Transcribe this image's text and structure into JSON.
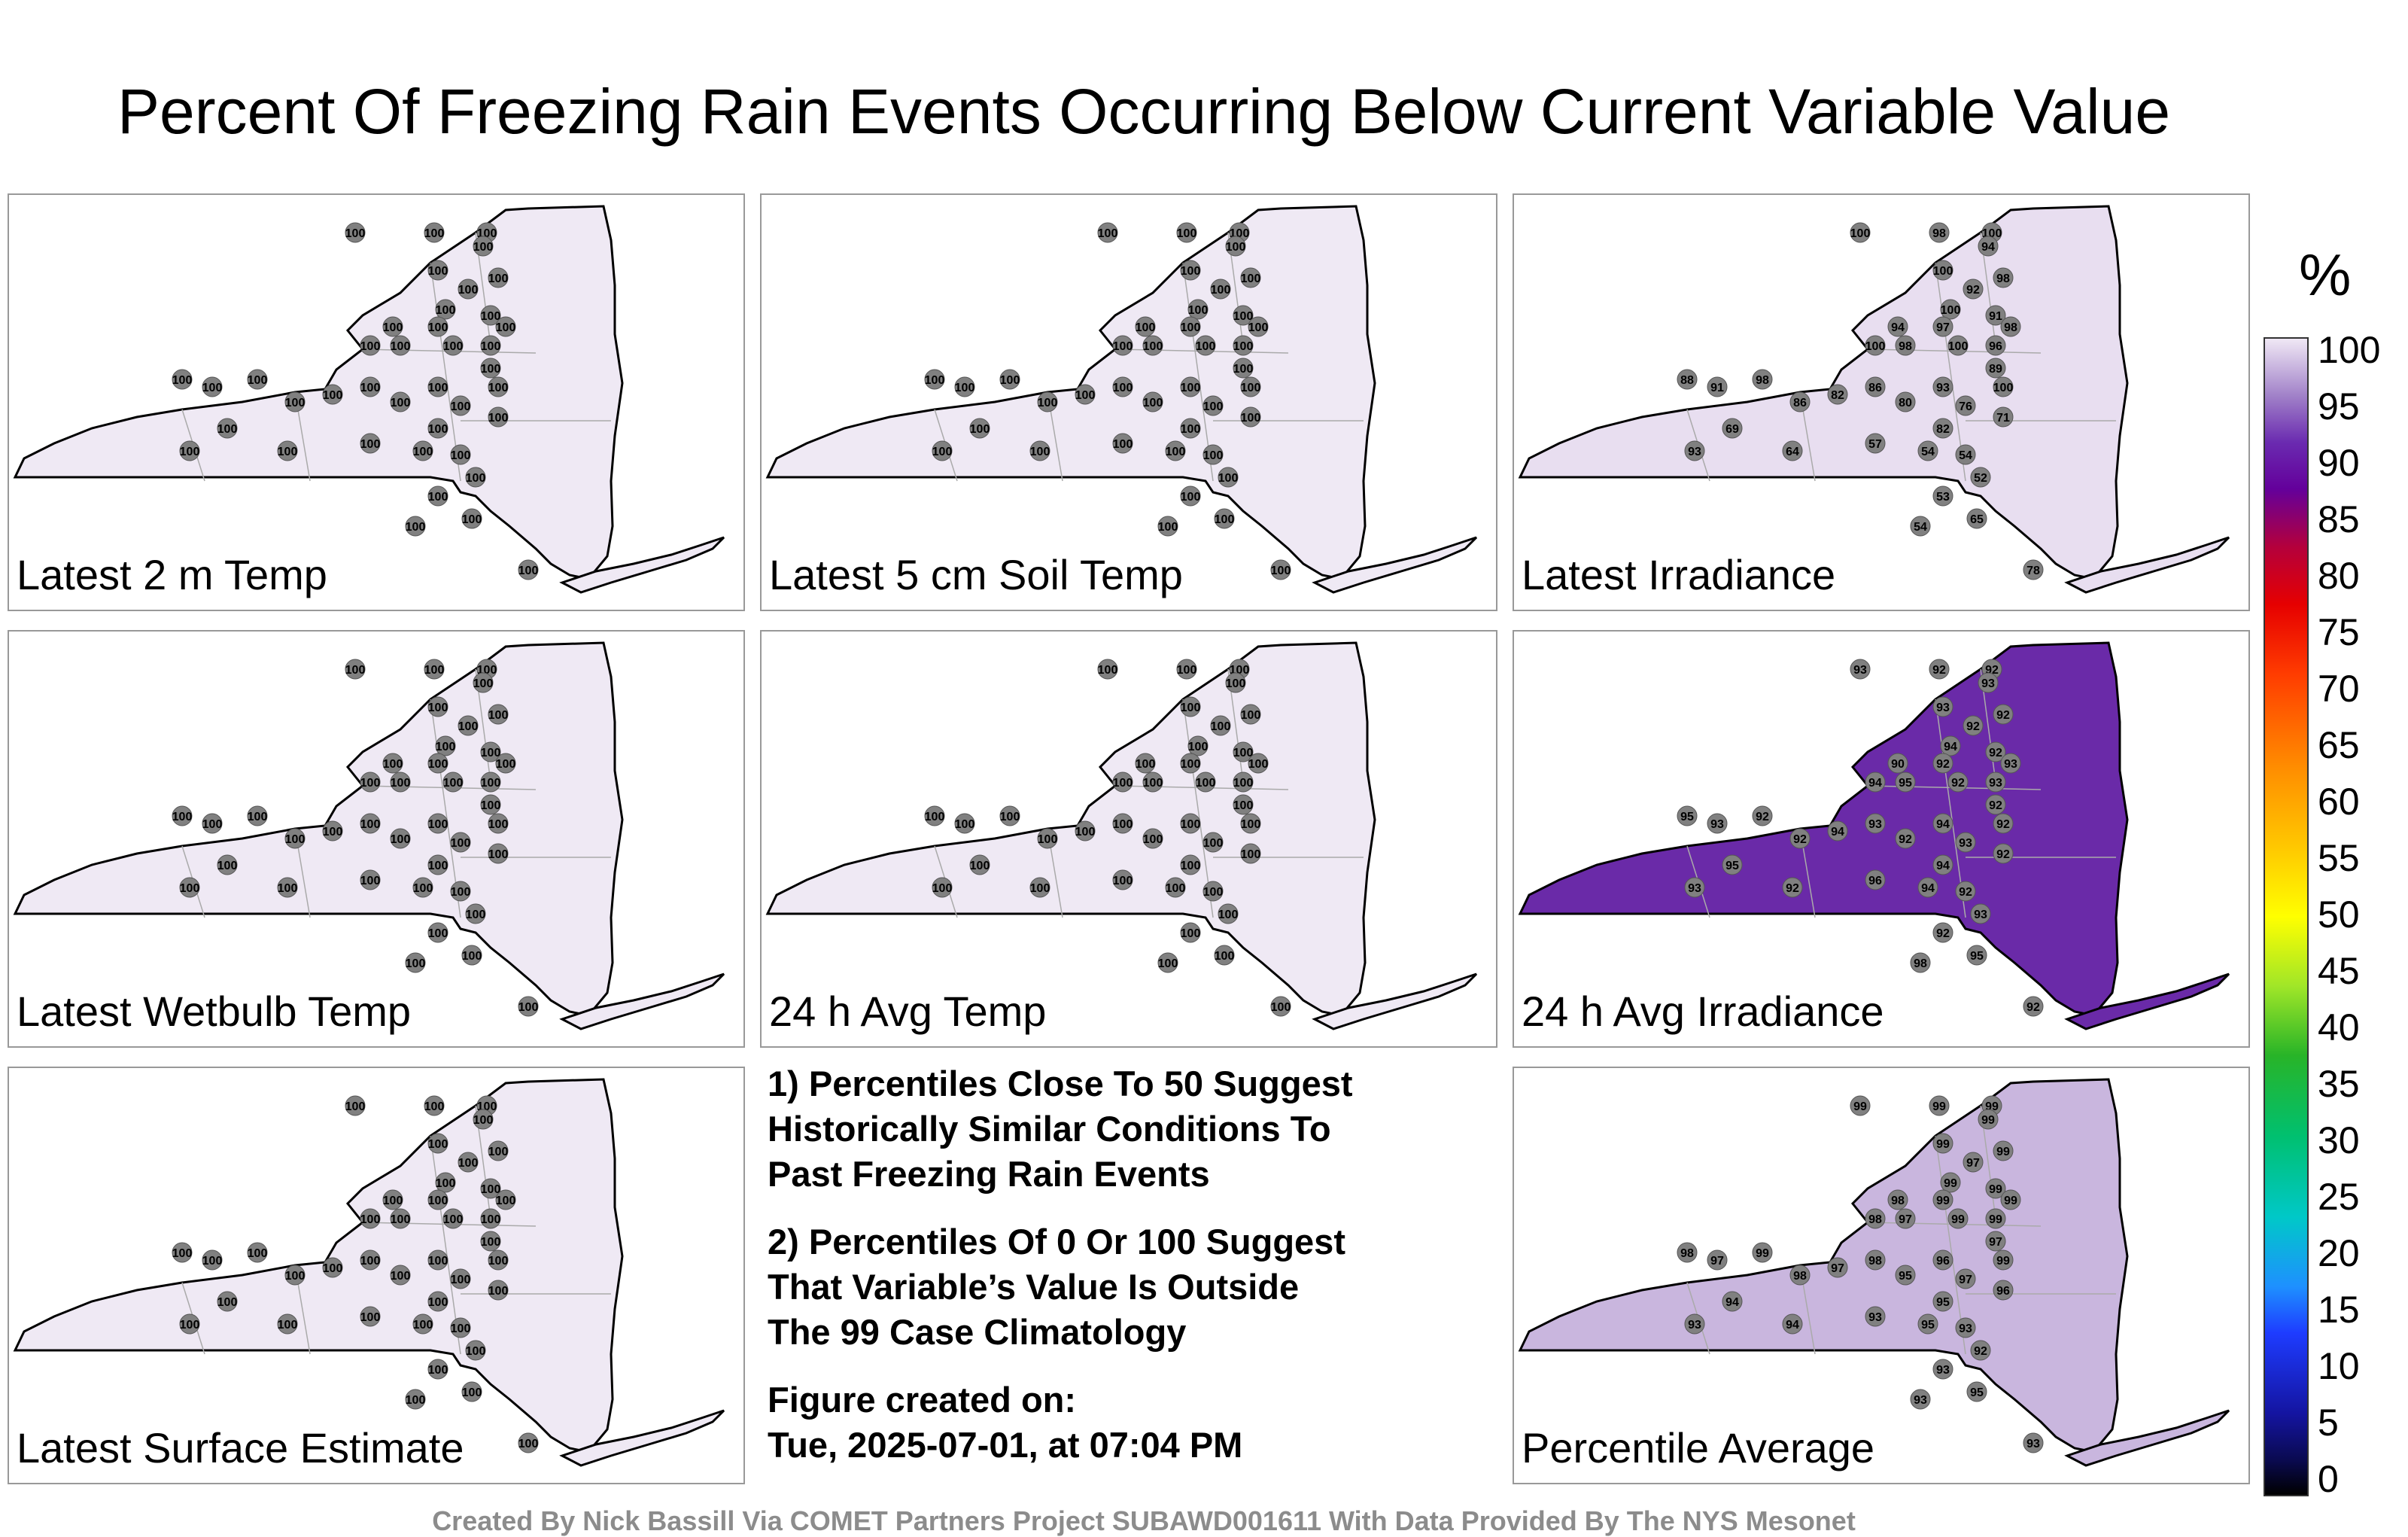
{
  "title": "Percent Of Freezing Rain Events Occurring Below Current Variable Value",
  "panels": [
    {
      "label": "Latest 2 m Temp",
      "fill": "#efe9f4",
      "values": [
        100,
        100,
        100,
        100,
        100,
        100,
        100,
        100,
        100,
        100,
        100,
        100,
        100,
        100,
        100,
        100,
        100,
        100,
        100,
        100,
        100,
        100,
        100,
        100,
        100,
        100,
        100,
        100,
        100,
        100,
        100,
        100,
        100,
        100,
        100,
        100,
        100,
        100,
        100,
        100
      ]
    },
    {
      "label": "Latest 5 cm Soil Temp",
      "fill": "#efe9f4",
      "values": [
        100,
        100,
        100,
        100,
        100,
        100,
        100,
        100,
        100,
        100,
        100,
        100,
        100,
        100,
        100,
        100,
        100,
        100,
        100,
        100,
        100,
        100,
        100,
        100,
        100,
        100,
        100,
        100,
        100,
        100,
        100,
        100,
        100,
        100,
        100,
        100,
        100,
        100,
        100,
        100
      ]
    },
    {
      "label": "Latest Irradiance",
      "fill": "#e8def0",
      "values": [
        100,
        98,
        100,
        94,
        100,
        98,
        92,
        100,
        91,
        94,
        97,
        98,
        100,
        98,
        100,
        96,
        89,
        86,
        93,
        100,
        98,
        91,
        88,
        86,
        82,
        80,
        76,
        71,
        82,
        69,
        93,
        64,
        57,
        54,
        54,
        52,
        53,
        54,
        65,
        78
      ]
    },
    {
      "label": "24 h Avg Temp",
      "fill": "#efe9f4",
      "values": [
        100,
        100,
        100,
        100,
        100,
        100,
        100,
        100,
        100,
        100,
        100,
        100,
        100,
        100,
        100,
        100,
        100,
        100,
        100,
        100,
        100,
        100,
        100,
        100,
        100,
        100,
        100,
        100,
        100,
        100,
        100,
        100,
        100,
        100,
        100,
        100,
        100,
        100,
        100,
        100
      ]
    },
    {
      "label": "Latest Wetbulb Temp",
      "fill": "#efe9f4",
      "values": [
        100,
        100,
        100,
        100,
        100,
        100,
        100,
        100,
        100,
        100,
        100,
        100,
        100,
        100,
        100,
        100,
        100,
        100,
        100,
        100,
        100,
        100,
        100,
        100,
        100,
        100,
        100,
        100,
        100,
        100,
        100,
        100,
        100,
        100,
        100,
        100,
        100,
        100,
        100,
        100
      ]
    },
    {
      "label": "24 h Avg Irradiance",
      "fill": "#6a2aa8",
      "values": [
        93,
        92,
        92,
        93,
        93,
        92,
        92,
        94,
        92,
        90,
        92,
        93,
        94,
        95,
        92,
        93,
        92,
        93,
        94,
        92,
        92,
        93,
        95,
        92,
        94,
        92,
        93,
        92,
        94,
        95,
        93,
        92,
        96,
        94,
        92,
        93,
        92,
        98,
        95,
        92
      ]
    },
    {
      "label": "Latest Surface Estimate",
      "fill": "#efe9f4",
      "values": [
        100,
        100,
        100,
        100,
        100,
        100,
        100,
        100,
        100,
        100,
        100,
        100,
        100,
        100,
        100,
        100,
        100,
        100,
        100,
        100,
        100,
        100,
        100,
        100,
        100,
        100,
        100,
        100,
        100,
        100,
        100,
        100,
        100,
        100,
        100,
        100,
        100,
        100,
        100,
        100
      ]
    },
    {
      "label": "Percentile Average",
      "fill": "#c9b6de",
      "values": [
        99,
        99,
        99,
        99,
        99,
        99,
        97,
        99,
        99,
        98,
        99,
        99,
        98,
        97,
        99,
        99,
        97,
        98,
        96,
        99,
        99,
        97,
        98,
        98,
        97,
        95,
        97,
        96,
        95,
        94,
        93,
        94,
        93,
        95,
        93,
        92,
        93,
        93,
        95,
        93
      ]
    }
  ],
  "notes": {
    "note1": "1) Percentiles Close To 50 Suggest\nHistorically Similar Conditions To\nPast Freezing Rain Events",
    "note2": "2) Percentiles Of 0 Or 100 Suggest\nThat Variable’s Value Is Outside\nThe 99 Case Climatology",
    "created": "Figure created on:\nTue, 2025-07-01, at 07:04 PM"
  },
  "colorbar": {
    "unit": "%",
    "ticks": [
      "100",
      "95",
      "90",
      "85",
      "80",
      "75",
      "70",
      "65",
      "60",
      "55",
      "50",
      "45",
      "40",
      "35",
      "30",
      "25",
      "20",
      "15",
      "10",
      "5",
      "0"
    ]
  },
  "credit": "Created By Nick Bassill Via COMET Partners Project SUBAWD001611 With Data Provided By The NYS Mesonet"
}
